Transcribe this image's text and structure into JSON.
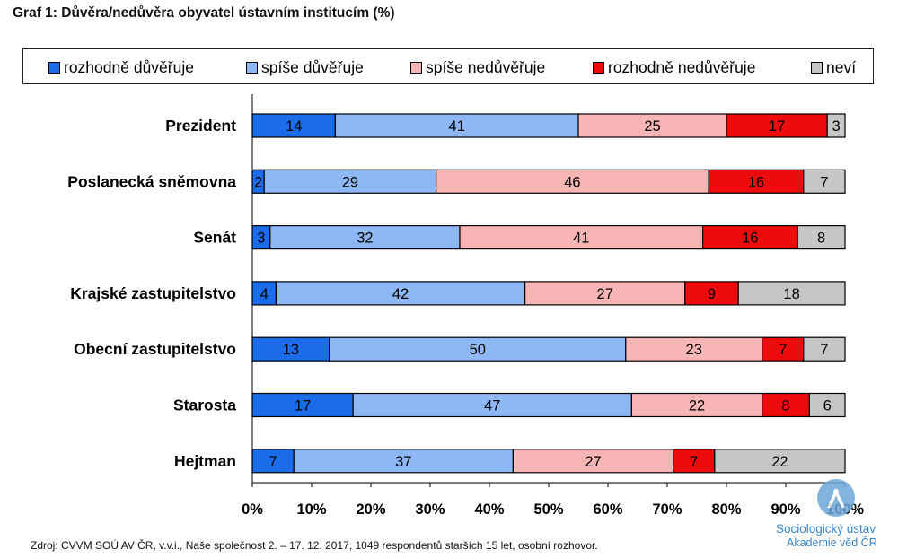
{
  "title": "Graf 1: Důvěra/nedůvěra obyvatel ústavním institucím (%)",
  "legend": [
    {
      "label": "rozhodně důvěřuje",
      "color": "#1a6ce8"
    },
    {
      "label": "spíše důvěřuje",
      "color": "#8db8f5"
    },
    {
      "label": "spíše nedůvěřuje",
      "color": "#f7b5b5"
    },
    {
      "label": "rozhodně nedůvěřuje",
      "color": "#ee0b0b"
    },
    {
      "label": "neví",
      "color": "#c6c6c6"
    }
  ],
  "chart_data": {
    "type": "bar",
    "orientation": "horizontal",
    "stacked": true,
    "categories": [
      "Prezident",
      "Poslanecká sněmovna",
      "Senát",
      "Krajské zastupitelstvo",
      "Obecní zastupitelstvo",
      "Starosta",
      "Hejtman"
    ],
    "series": [
      {
        "name": "rozhodně důvěřuje",
        "color": "#1a6ce8",
        "values": [
          14,
          2,
          3,
          4,
          13,
          17,
          7
        ]
      },
      {
        "name": "spíše důvěřuje",
        "color": "#8db8f5",
        "values": [
          41,
          29,
          32,
          42,
          50,
          47,
          37
        ]
      },
      {
        "name": "spíše nedůvěřuje",
        "color": "#f7b5b5",
        "values": [
          25,
          46,
          41,
          27,
          23,
          22,
          27
        ]
      },
      {
        "name": "rozhodně nedůvěřuje",
        "color": "#ee0b0b",
        "values": [
          17,
          16,
          16,
          9,
          7,
          8,
          7
        ]
      },
      {
        "name": "neví",
        "color": "#c6c6c6",
        "values": [
          3,
          7,
          8,
          18,
          7,
          6,
          22
        ]
      }
    ],
    "xlim": [
      0,
      100
    ],
    "xticks": [
      "0%",
      "10%",
      "20%",
      "30%",
      "40%",
      "50%",
      "60%",
      "70%",
      "80%",
      "90%",
      "100%"
    ],
    "grid": false,
    "legend_position": "top"
  },
  "source": "Zdroj: CVVM SOÚ AV ČR, v.v.i., Naše společnost 2. – 17. 12. 2017, 1049 respondentů starších 15 let, osobní rozhovor.",
  "logo": {
    "line1": "Sociologický ústav",
    "line2": "Akademie věd ČR"
  }
}
